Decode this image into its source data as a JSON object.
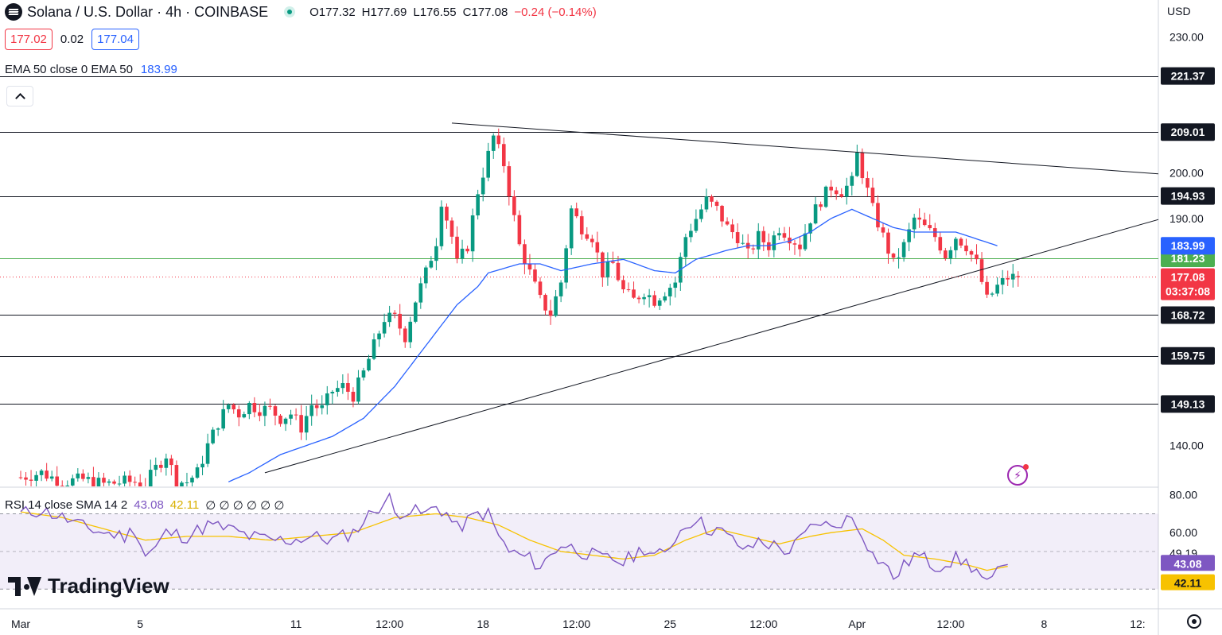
{
  "header": {
    "symbol": "Solana / U.S. Dollar · 4h · COINBASE",
    "open": "O177.32",
    "high": "H177.69",
    "low": "L176.55",
    "close": "C177.08",
    "change": "−0.24 (−0.14%)"
  },
  "quote": {
    "bid": "177.02",
    "spread": "0.02",
    "ask": "177.04"
  },
  "ema_legend": {
    "label": "EMA 50 close 0 EMA 50",
    "value": "183.99"
  },
  "rsi_legend": {
    "label": "RSI 14 close SMA 14 2",
    "rsi": "43.08",
    "sma": "42.11",
    "extras": "∅ ∅ ∅ ∅ ∅ ∅"
  },
  "currency": "USD",
  "branding": "TradingView",
  "colors": {
    "up": "#089981",
    "down": "#f23645",
    "ema": "#2962ff",
    "rsi": "#7e57c2",
    "rsi_sma": "#f7c200",
    "support": "#4caf50"
  },
  "icons": {
    "symbol_logo": "solana-logo-icon",
    "status": "live-dot-icon",
    "collapse": "chevron-up-icon",
    "flash": "lightning-icon",
    "settings": "settings-icon"
  },
  "chart_data": {
    "type": "candlestick",
    "price_axis": {
      "min": 131,
      "max": 236,
      "ticks": [
        140,
        190,
        200,
        230
      ]
    },
    "time_labels": [
      {
        "t": 0,
        "label": "Mar"
      },
      {
        "t": 23,
        "label": "5"
      },
      {
        "t": 53,
        "label": "11"
      },
      {
        "t": 71,
        "label": "12:00"
      },
      {
        "t": 89,
        "label": "18"
      },
      {
        "t": 107,
        "label": "12:00"
      },
      {
        "t": 125,
        "label": "25"
      },
      {
        "t": 143,
        "label": "12:00"
      },
      {
        "t": 161,
        "label": "Apr"
      },
      {
        "t": 179,
        "label": "12:00"
      },
      {
        "t": 197,
        "label": "8"
      },
      {
        "t": 215,
        "label": "12:"
      }
    ],
    "horizontal_levels": [
      {
        "value": 221.37,
        "label": "221.37",
        "kind": "resistance"
      },
      {
        "value": 209.01,
        "label": "209.01",
        "kind": "resistance"
      },
      {
        "value": 194.93,
        "label": "194.93",
        "kind": "resistance"
      },
      {
        "value": 181.23,
        "label": "181.23",
        "kind": "pivot"
      },
      {
        "value": 168.72,
        "label": "168.72",
        "kind": "support"
      },
      {
        "value": 159.75,
        "label": "159.75",
        "kind": "support"
      },
      {
        "value": 149.13,
        "label": "149.13",
        "kind": "support"
      }
    ],
    "trendlines": [
      {
        "name": "upper",
        "from": [
          83,
          211
        ],
        "to": [
          229,
          199
        ]
      },
      {
        "name": "lower",
        "from": [
          47,
          134
        ],
        "to": [
          229,
          193
        ]
      }
    ],
    "last_price": {
      "value": 177.08,
      "label": "177.08",
      "countdown": "03:37:08"
    },
    "ema_last": {
      "value": 183.99,
      "label": "183.99"
    },
    "close_anchors": [
      [
        0,
        133
      ],
      [
        4,
        134
      ],
      [
        8,
        132
      ],
      [
        12,
        132.5
      ],
      [
        16,
        131.5
      ],
      [
        20,
        132
      ],
      [
        22,
        132
      ],
      [
        24,
        131.5
      ],
      [
        26,
        135
      ],
      [
        28,
        138
      ],
      [
        30,
        132
      ],
      [
        32,
        132
      ],
      [
        34,
        134
      ],
      [
        36,
        140
      ],
      [
        38,
        145
      ],
      [
        40,
        149
      ],
      [
        42,
        147
      ],
      [
        44,
        149
      ],
      [
        46,
        148
      ],
      [
        48,
        148
      ],
      [
        50,
        146
      ],
      [
        52,
        147
      ],
      [
        54,
        144
      ],
      [
        56,
        149
      ],
      [
        58,
        148
      ],
      [
        60,
        152
      ],
      [
        62,
        153
      ],
      [
        64,
        151
      ],
      [
        66,
        156
      ],
      [
        68,
        162
      ],
      [
        70,
        168
      ],
      [
        72,
        168
      ],
      [
        74,
        164
      ],
      [
        76,
        172
      ],
      [
        78,
        178
      ],
      [
        80,
        185
      ],
      [
        81,
        194
      ],
      [
        83,
        186
      ],
      [
        84,
        180
      ],
      [
        86,
        184
      ],
      [
        88,
        196
      ],
      [
        90,
        204
      ],
      [
        91,
        208
      ],
      [
        93,
        202
      ],
      [
        94,
        196
      ],
      [
        96,
        184
      ],
      [
        98,
        178
      ],
      [
        100,
        172
      ],
      [
        102,
        169
      ],
      [
        104,
        176
      ],
      [
        106,
        192
      ],
      [
        108,
        188
      ],
      [
        110,
        186
      ],
      [
        112,
        178
      ],
      [
        114,
        180
      ],
      [
        116,
        174
      ],
      [
        118,
        172
      ],
      [
        120,
        174
      ],
      [
        122,
        172
      ],
      [
        124,
        174
      ],
      [
        126,
        176
      ],
      [
        128,
        186
      ],
      [
        130,
        190
      ],
      [
        132,
        194
      ],
      [
        134,
        192
      ],
      [
        136,
        188
      ],
      [
        138,
        186
      ],
      [
        140,
        182
      ],
      [
        142,
        186
      ],
      [
        144,
        184
      ],
      [
        146,
        188
      ],
      [
        148,
        186
      ],
      [
        150,
        184
      ],
      [
        152,
        190
      ],
      [
        154,
        194
      ],
      [
        156,
        197
      ],
      [
        158,
        196
      ],
      [
        160,
        198
      ],
      [
        161,
        204
      ],
      [
        162,
        200
      ],
      [
        164,
        192
      ],
      [
        166,
        186
      ],
      [
        168,
        180
      ],
      [
        170,
        184
      ],
      [
        172,
        190
      ],
      [
        174,
        188
      ],
      [
        176,
        186
      ],
      [
        178,
        182
      ],
      [
        180,
        186
      ],
      [
        182,
        184
      ],
      [
        184,
        180
      ],
      [
        186,
        172
      ],
      [
        188,
        175
      ],
      [
        190,
        177
      ],
      [
        192,
        177.08
      ]
    ],
    "ema_anchors": [
      [
        40,
        132
      ],
      [
        44,
        134
      ],
      [
        50,
        138
      ],
      [
        60,
        142
      ],
      [
        66,
        146
      ],
      [
        72,
        153
      ],
      [
        78,
        162
      ],
      [
        84,
        171
      ],
      [
        88,
        175
      ],
      [
        90,
        178
      ],
      [
        96,
        180
      ],
      [
        100,
        180
      ],
      [
        104,
        178.5
      ],
      [
        110,
        180
      ],
      [
        116,
        181
      ],
      [
        122,
        178.5
      ],
      [
        126,
        178
      ],
      [
        130,
        181
      ],
      [
        136,
        183
      ],
      [
        140,
        184
      ],
      [
        144,
        184
      ],
      [
        148,
        185
      ],
      [
        152,
        187
      ],
      [
        156,
        190
      ],
      [
        160,
        192
      ],
      [
        164,
        190
      ],
      [
        168,
        188
      ],
      [
        172,
        187
      ],
      [
        176,
        187
      ],
      [
        180,
        187
      ],
      [
        184,
        185.5
      ],
      [
        188,
        183.99
      ]
    ],
    "rsi": {
      "axis": {
        "min": 20,
        "max": 82,
        "ticks": [
          60,
          80
        ]
      },
      "bands": {
        "upper": 70,
        "middle": 50,
        "lower": 30
      },
      "last_rsi": {
        "value": 43.08,
        "label": "43.08"
      },
      "last_sma": {
        "value": 42.11,
        "label": "42.11"
      },
      "extra_label": {
        "value": 49.19,
        "label": "49.19"
      },
      "rsi_anchors": [
        [
          0,
          70
        ],
        [
          4,
          72
        ],
        [
          8,
          68
        ],
        [
          12,
          63
        ],
        [
          16,
          60
        ],
        [
          20,
          58
        ],
        [
          22,
          62
        ],
        [
          24,
          48
        ],
        [
          26,
          52
        ],
        [
          28,
          60
        ],
        [
          32,
          58
        ],
        [
          36,
          64
        ],
        [
          40,
          62
        ],
        [
          44,
          58
        ],
        [
          48,
          56
        ],
        [
          52,
          56
        ],
        [
          56,
          58
        ],
        [
          60,
          56
        ],
        [
          64,
          60
        ],
        [
          68,
          72
        ],
        [
          71,
          78
        ],
        [
          72,
          70
        ],
        [
          74,
          72
        ],
        [
          78,
          70
        ],
        [
          80,
          74
        ],
        [
          82,
          70
        ],
        [
          84,
          62
        ],
        [
          86,
          66
        ],
        [
          88,
          70
        ],
        [
          90,
          70
        ],
        [
          92,
          58
        ],
        [
          94,
          50
        ],
        [
          96,
          48
        ],
        [
          98,
          46
        ],
        [
          100,
          42
        ],
        [
          102,
          48
        ],
        [
          104,
          54
        ],
        [
          106,
          52
        ],
        [
          108,
          50
        ],
        [
          110,
          48
        ],
        [
          112,
          46
        ],
        [
          114,
          46
        ],
        [
          116,
          44
        ],
        [
          118,
          48
        ],
        [
          120,
          52
        ],
        [
          122,
          48
        ],
        [
          124,
          48
        ],
        [
          126,
          58
        ],
        [
          128,
          64
        ],
        [
          130,
          68
        ],
        [
          132,
          62
        ],
        [
          134,
          62
        ],
        [
          136,
          58
        ],
        [
          138,
          54
        ],
        [
          140,
          50
        ],
        [
          142,
          56
        ],
        [
          144,
          54
        ],
        [
          146,
          52
        ],
        [
          148,
          50
        ],
        [
          150,
          56
        ],
        [
          152,
          62
        ],
        [
          154,
          66
        ],
        [
          156,
          62
        ],
        [
          158,
          66
        ],
        [
          160,
          68
        ],
        [
          162,
          60
        ],
        [
          164,
          48
        ],
        [
          166,
          44
        ],
        [
          168,
          36
        ],
        [
          170,
          42
        ],
        [
          172,
          48
        ],
        [
          174,
          46
        ],
        [
          176,
          42
        ],
        [
          178,
          44
        ],
        [
          180,
          46
        ],
        [
          182,
          44
        ],
        [
          184,
          40
        ],
        [
          186,
          32
        ],
        [
          188,
          38
        ],
        [
          190,
          43.08
        ]
      ],
      "sma_anchors": [
        [
          0,
          71
        ],
        [
          8,
          68
        ],
        [
          16,
          62
        ],
        [
          24,
          56
        ],
        [
          32,
          58
        ],
        [
          40,
          58
        ],
        [
          48,
          56
        ],
        [
          56,
          58
        ],
        [
          64,
          60
        ],
        [
          72,
          68
        ],
        [
          80,
          70
        ],
        [
          86,
          68
        ],
        [
          92,
          64
        ],
        [
          98,
          56
        ],
        [
          104,
          50
        ],
        [
          110,
          48
        ],
        [
          116,
          46
        ],
        [
          122,
          48
        ],
        [
          128,
          56
        ],
        [
          134,
          62
        ],
        [
          140,
          58
        ],
        [
          146,
          54
        ],
        [
          152,
          58
        ],
        [
          156,
          60
        ],
        [
          162,
          62
        ],
        [
          166,
          56
        ],
        [
          170,
          48
        ],
        [
          176,
          46
        ],
        [
          182,
          43
        ],
        [
          186,
          40
        ],
        [
          190,
          42.11
        ]
      ]
    }
  }
}
